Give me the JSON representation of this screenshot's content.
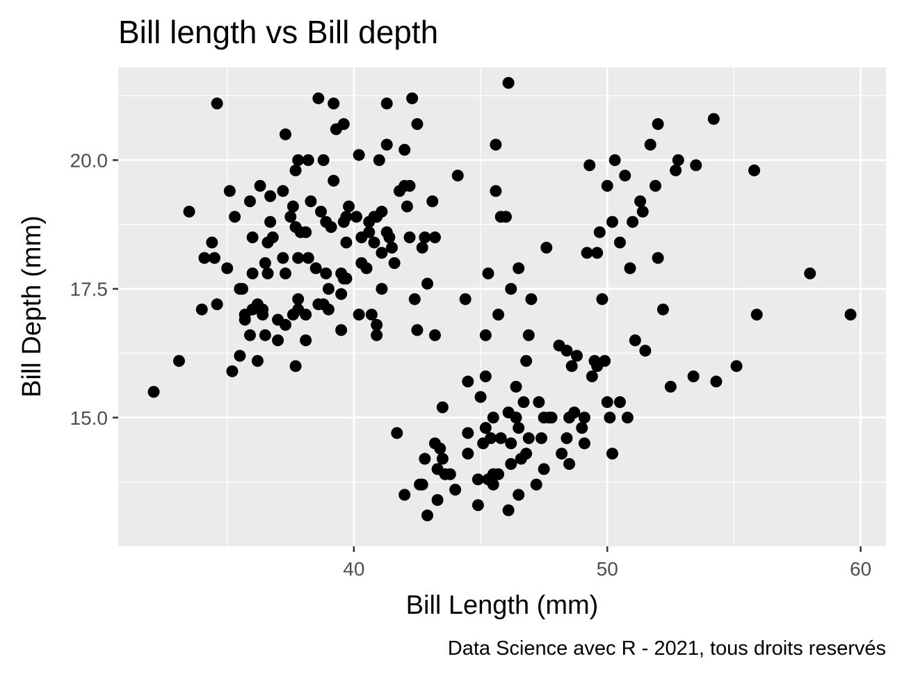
{
  "chart_data": {
    "type": "scatter",
    "title": "Bill length vs Bill depth",
    "xlabel": "Bill Length (mm)",
    "ylabel": "Bill Depth (mm)",
    "caption": "Data Science avec R - 2021, tous droits reservés",
    "xlim": [
      30.7,
      61.0
    ],
    "ylim": [
      12.5,
      21.8
    ],
    "xticks": [
      40,
      50,
      60
    ],
    "xtick_labels": [
      "40",
      "50",
      "60"
    ],
    "xminor": [
      35,
      45,
      55
    ],
    "yticks": [
      15.0,
      17.5,
      20.0
    ],
    "ytick_labels": [
      "15.0",
      "17.5",
      "20.0"
    ],
    "yminor": [
      13.75,
      16.25,
      18.75,
      21.25
    ],
    "grid": true,
    "theme": {
      "panel_bg": "#ebebeb",
      "grid_color": "#ffffff",
      "point_color": "#000000"
    },
    "points": [
      [
        32.1,
        15.5
      ],
      [
        33.1,
        16.1
      ],
      [
        33.5,
        19.0
      ],
      [
        34.0,
        17.1
      ],
      [
        34.1,
        18.1
      ],
      [
        34.4,
        18.4
      ],
      [
        34.5,
        18.1
      ],
      [
        34.6,
        21.1
      ],
      [
        34.6,
        17.2
      ],
      [
        35.0,
        17.9
      ],
      [
        35.1,
        19.4
      ],
      [
        35.2,
        15.9
      ],
      [
        35.3,
        18.9
      ],
      [
        35.5,
        16.2
      ],
      [
        35.5,
        17.5
      ],
      [
        35.6,
        17.5
      ],
      [
        35.7,
        17.0
      ],
      [
        35.7,
        16.9
      ],
      [
        35.9,
        16.6
      ],
      [
        35.9,
        19.2
      ],
      [
        36.0,
        17.1
      ],
      [
        36.0,
        18.5
      ],
      [
        36.0,
        17.8
      ],
      [
        36.2,
        17.2
      ],
      [
        36.2,
        16.1
      ],
      [
        36.3,
        19.5
      ],
      [
        36.4,
        17.1
      ],
      [
        36.4,
        17.0
      ],
      [
        36.5,
        18.0
      ],
      [
        36.5,
        16.6
      ],
      [
        36.6,
        17.8
      ],
      [
        36.7,
        18.8
      ],
      [
        36.7,
        19.3
      ],
      [
        36.6,
        18.4
      ],
      [
        36.8,
        18.5
      ],
      [
        37.0,
        16.9
      ],
      [
        37.0,
        16.5
      ],
      [
        37.2,
        18.1
      ],
      [
        37.3,
        17.8
      ],
      [
        37.3,
        20.5
      ],
      [
        37.3,
        16.8
      ],
      [
        37.2,
        19.4
      ],
      [
        37.5,
        18.9
      ],
      [
        37.6,
        19.1
      ],
      [
        37.6,
        17.0
      ],
      [
        37.7,
        18.7
      ],
      [
        37.7,
        16.0
      ],
      [
        37.7,
        19.8
      ],
      [
        37.8,
        17.3
      ],
      [
        37.8,
        18.1
      ],
      [
        37.8,
        20.0
      ],
      [
        37.8,
        17.1
      ],
      [
        37.9,
        18.6
      ],
      [
        38.1,
        18.6
      ],
      [
        38.1,
        17.0
      ],
      [
        38.1,
        16.5
      ],
      [
        38.2,
        18.1
      ],
      [
        38.2,
        20.0
      ],
      [
        38.3,
        19.2
      ],
      [
        38.5,
        17.9
      ],
      [
        38.6,
        21.2
      ],
      [
        38.6,
        17.2
      ],
      [
        38.7,
        19.0
      ],
      [
        38.8,
        17.2
      ],
      [
        38.8,
        20.0
      ],
      [
        38.9,
        17.8
      ],
      [
        38.9,
        18.8
      ],
      [
        39.0,
        17.5
      ],
      [
        39.0,
        17.1
      ],
      [
        39.1,
        18.7
      ],
      [
        39.2,
        21.1
      ],
      [
        39.2,
        19.6
      ],
      [
        39.3,
        20.6
      ],
      [
        39.5,
        16.7
      ],
      [
        39.5,
        17.4
      ],
      [
        39.5,
        17.8
      ],
      [
        39.6,
        17.7
      ],
      [
        39.6,
        18.8
      ],
      [
        39.6,
        20.7
      ],
      [
        39.7,
        17.7
      ],
      [
        39.7,
        18.4
      ],
      [
        39.7,
        18.9
      ],
      [
        39.8,
        19.1
      ],
      [
        40.1,
        18.9
      ],
      [
        40.2,
        17.0
      ],
      [
        40.2,
        20.1
      ],
      [
        40.3,
        18.0
      ],
      [
        40.3,
        18.5
      ],
      [
        40.5,
        17.9
      ],
      [
        40.6,
        18.6
      ],
      [
        40.6,
        18.8
      ],
      [
        40.7,
        17.0
      ],
      [
        40.8,
        18.4
      ],
      [
        40.8,
        18.9
      ],
      [
        40.9,
        16.8
      ],
      [
        40.9,
        16.6
      ],
      [
        40.9,
        18.9
      ],
      [
        41.0,
        20.0
      ],
      [
        41.1,
        18.2
      ],
      [
        41.1,
        19.0
      ],
      [
        41.1,
        17.5
      ],
      [
        41.3,
        21.1
      ],
      [
        41.3,
        20.3
      ],
      [
        41.3,
        18.6
      ],
      [
        41.4,
        18.5
      ],
      [
        41.5,
        18.3
      ],
      [
        41.6,
        18.0
      ],
      [
        41.7,
        14.7
      ],
      [
        41.8,
        19.4
      ],
      [
        42.0,
        19.5
      ],
      [
        42.0,
        20.2
      ],
      [
        42.0,
        13.5
      ],
      [
        42.1,
        19.1
      ],
      [
        42.2,
        18.5
      ],
      [
        42.2,
        19.5
      ],
      [
        42.3,
        21.2
      ],
      [
        42.4,
        17.3
      ],
      [
        42.5,
        20.7
      ],
      [
        42.5,
        16.7
      ],
      [
        42.6,
        13.7
      ],
      [
        42.7,
        18.3
      ],
      [
        42.7,
        13.7
      ],
      [
        42.8,
        18.5
      ],
      [
        42.8,
        14.2
      ],
      [
        42.9,
        17.6
      ],
      [
        42.9,
        13.1
      ],
      [
        43.1,
        19.2
      ],
      [
        43.2,
        18.5
      ],
      [
        43.2,
        16.6
      ],
      [
        43.2,
        14.5
      ],
      [
        43.3,
        13.4
      ],
      [
        43.3,
        14.0
      ],
      [
        43.4,
        14.4
      ],
      [
        43.5,
        14.2
      ],
      [
        43.5,
        15.2
      ],
      [
        43.6,
        13.9
      ],
      [
        43.8,
        13.9
      ],
      [
        44.0,
        13.6
      ],
      [
        44.1,
        19.7
      ],
      [
        44.4,
        17.3
      ],
      [
        44.5,
        14.3
      ],
      [
        44.5,
        15.7
      ],
      [
        44.5,
        14.7
      ],
      [
        44.9,
        13.3
      ],
      [
        44.9,
        13.8
      ],
      [
        45.0,
        15.4
      ],
      [
        45.1,
        14.5
      ],
      [
        45.2,
        14.8
      ],
      [
        45.2,
        16.6
      ],
      [
        45.2,
        15.8
      ],
      [
        45.3,
        13.8
      ],
      [
        45.3,
        17.8
      ],
      [
        45.4,
        14.6
      ],
      [
        45.5,
        13.7
      ],
      [
        45.5,
        13.9
      ],
      [
        45.5,
        15.0
      ],
      [
        45.6,
        20.3
      ],
      [
        45.6,
        19.4
      ],
      [
        45.7,
        13.9
      ],
      [
        45.7,
        17.0
      ],
      [
        45.8,
        14.6
      ],
      [
        45.8,
        18.9
      ],
      [
        46.0,
        18.9
      ],
      [
        46.1,
        21.5
      ],
      [
        46.1,
        15.1
      ],
      [
        46.1,
        13.2
      ],
      [
        46.2,
        14.5
      ],
      [
        46.2,
        14.1
      ],
      [
        46.2,
        17.5
      ],
      [
        46.4,
        15.0
      ],
      [
        46.4,
        15.6
      ],
      [
        46.5,
        14.8
      ],
      [
        46.5,
        13.5
      ],
      [
        46.5,
        17.9
      ],
      [
        46.6,
        14.2
      ],
      [
        46.7,
        15.3
      ],
      [
        46.8,
        14.3
      ],
      [
        46.8,
        16.1
      ],
      [
        46.9,
        14.6
      ],
      [
        46.9,
        16.6
      ],
      [
        47.0,
        17.3
      ],
      [
        47.2,
        13.7
      ],
      [
        47.3,
        15.3
      ],
      [
        47.4,
        14.6
      ],
      [
        47.5,
        14.0
      ],
      [
        47.5,
        15.0
      ],
      [
        47.6,
        18.3
      ],
      [
        47.7,
        15.0
      ],
      [
        47.8,
        15.0
      ],
      [
        48.1,
        16.4
      ],
      [
        48.2,
        14.3
      ],
      [
        48.4,
        14.6
      ],
      [
        48.4,
        16.3
      ],
      [
        48.5,
        15.0
      ],
      [
        48.5,
        14.1
      ],
      [
        48.6,
        16.0
      ],
      [
        48.7,
        15.1
      ],
      [
        48.8,
        16.2
      ],
      [
        49.0,
        14.8
      ],
      [
        49.1,
        14.5
      ],
      [
        49.1,
        15.0
      ],
      [
        49.2,
        18.2
      ],
      [
        49.3,
        19.9
      ],
      [
        49.4,
        15.8
      ],
      [
        49.5,
        16.1
      ],
      [
        49.6,
        16.0
      ],
      [
        49.6,
        18.2
      ],
      [
        49.7,
        18.6
      ],
      [
        49.8,
        17.3
      ],
      [
        49.9,
        16.1
      ],
      [
        50.0,
        15.3
      ],
      [
        50.0,
        19.5
      ],
      [
        50.1,
        15.0
      ],
      [
        50.2,
        18.8
      ],
      [
        50.2,
        14.3
      ],
      [
        50.3,
        20.0
      ],
      [
        50.5,
        15.3
      ],
      [
        50.5,
        18.4
      ],
      [
        50.7,
        19.7
      ],
      [
        50.8,
        15.0
      ],
      [
        50.9,
        17.9
      ],
      [
        51.0,
        18.8
      ],
      [
        51.1,
        16.5
      ],
      [
        51.3,
        19.2
      ],
      [
        51.4,
        19.0
      ],
      [
        51.5,
        16.3
      ],
      [
        51.7,
        20.3
      ],
      [
        51.9,
        19.5
      ],
      [
        52.0,
        18.1
      ],
      [
        52.0,
        20.7
      ],
      [
        52.2,
        17.1
      ],
      [
        52.5,
        15.6
      ],
      [
        52.7,
        19.8
      ],
      [
        52.8,
        20.0
      ],
      [
        53.4,
        15.8
      ],
      [
        53.5,
        19.9
      ],
      [
        54.2,
        20.8
      ],
      [
        54.3,
        15.7
      ],
      [
        55.1,
        16.0
      ],
      [
        55.8,
        19.8
      ],
      [
        55.9,
        17.0
      ],
      [
        58.0,
        17.8
      ],
      [
        59.6,
        17.0
      ]
    ]
  }
}
